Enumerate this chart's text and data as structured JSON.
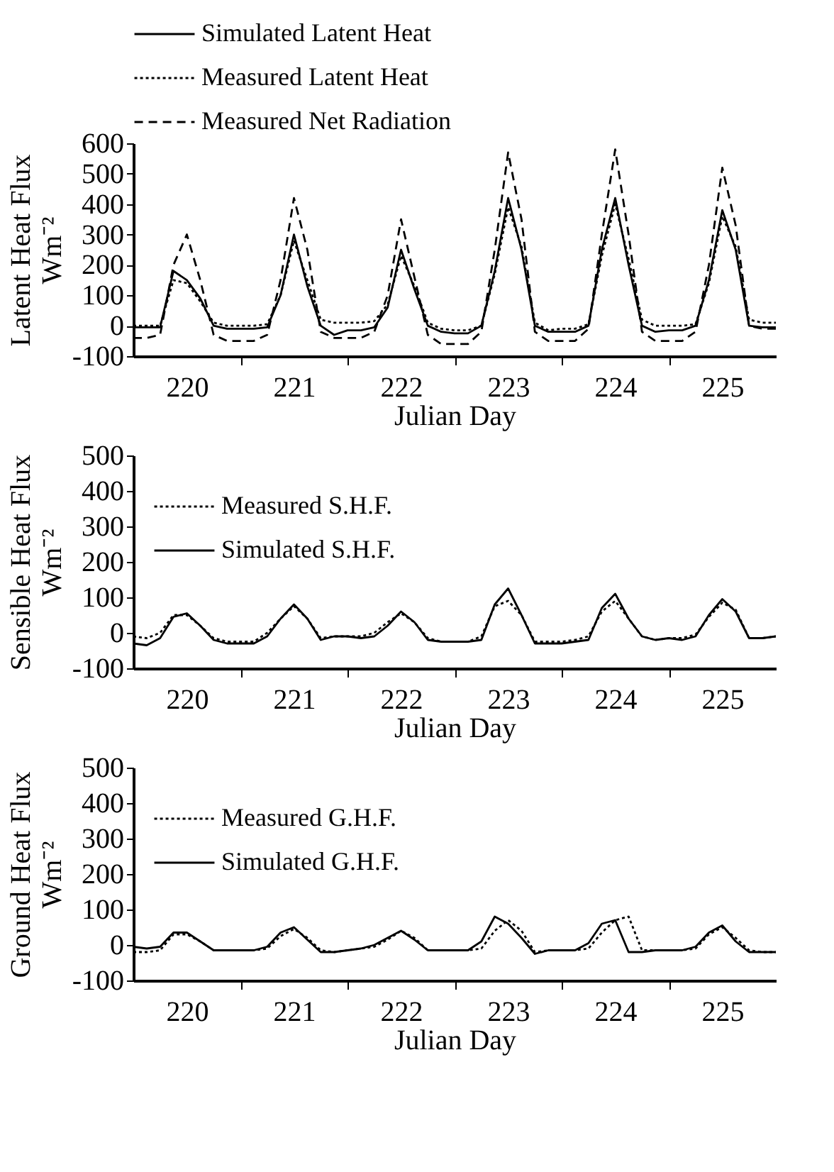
{
  "chart_data": [
    {
      "type": "line",
      "xlabel": "Julian Day",
      "ylabel": "Latent Heat Flux\nWm⁻²",
      "xlim": [
        220,
        226
      ],
      "ylim": [
        -100,
        600
      ],
      "yticks": [
        -100,
        0,
        100,
        200,
        300,
        400,
        500,
        600
      ],
      "xticks": [
        {
          "value": 220.5,
          "label": "220"
        },
        {
          "value": 221,
          "label": null
        },
        {
          "value": 221.5,
          "label": "221"
        },
        {
          "value": 222,
          "label": null
        },
        {
          "value": 222.5,
          "label": "222"
        },
        {
          "value": 223,
          "label": null
        },
        {
          "value": 223.5,
          "label": "223"
        },
        {
          "value": 224,
          "label": null
        },
        {
          "value": 224.5,
          "label": "224"
        },
        {
          "value": 225,
          "label": null
        },
        {
          "value": 225.5,
          "label": "225"
        }
      ],
      "grid": false,
      "legend": "top",
      "x": [
        220,
        220.125,
        220.25,
        220.375,
        220.5,
        220.625,
        220.75,
        220.875,
        221,
        221.125,
        221.25,
        221.375,
        221.5,
        221.625,
        221.75,
        221.875,
        222,
        222.125,
        222.25,
        222.375,
        222.5,
        222.625,
        222.75,
        222.875,
        223,
        223.125,
        223.25,
        223.375,
        223.5,
        223.625,
        223.75,
        223.875,
        224,
        224.125,
        224.25,
        224.375,
        224.5,
        224.625,
        224.75,
        224.875,
        225,
        225.125,
        225.25,
        225.375,
        225.5,
        225.625,
        225.75,
        225.875,
        226
      ],
      "series": [
        {
          "name": "Simulated Latent Heat",
          "color": "#000000",
          "line_style": "solid",
          "values": [
            -5,
            -5,
            -5,
            180,
            150,
            90,
            0,
            -10,
            -10,
            -10,
            -5,
            100,
            300,
            130,
            0,
            -30,
            -15,
            -15,
            -5,
            60,
            250,
            120,
            0,
            -20,
            -25,
            -25,
            0,
            180,
            420,
            250,
            0,
            -20,
            -20,
            -20,
            0,
            250,
            420,
            200,
            0,
            -20,
            -15,
            -15,
            0,
            150,
            380,
            250,
            0,
            -5,
            -5
          ]
        },
        {
          "name": "Measured Latent Heat",
          "color": "#000000",
          "line_style": "dotted",
          "values": [
            0,
            0,
            0,
            150,
            140,
            80,
            10,
            0,
            0,
            0,
            5,
            100,
            280,
            150,
            20,
            10,
            10,
            10,
            15,
            70,
            230,
            130,
            10,
            -10,
            -15,
            -15,
            0,
            170,
            390,
            260,
            10,
            -15,
            -10,
            -10,
            5,
            230,
            400,
            220,
            20,
            0,
            0,
            0,
            5,
            140,
            360,
            260,
            20,
            10,
            10
          ]
        },
        {
          "name": "Measured Net Radiation",
          "color": "#000000",
          "line_style": "dashed",
          "values": [
            -40,
            -40,
            -30,
            200,
            300,
            150,
            -30,
            -50,
            -50,
            -50,
            -30,
            150,
            420,
            250,
            -20,
            -40,
            -40,
            -40,
            -20,
            100,
            350,
            160,
            -30,
            -60,
            -60,
            -60,
            -20,
            250,
            570,
            350,
            -20,
            -50,
            -50,
            -50,
            -10,
            300,
            580,
            300,
            -20,
            -50,
            -50,
            -50,
            -20,
            200,
            520,
            330,
            0,
            -10,
            -10
          ]
        }
      ]
    },
    {
      "type": "line",
      "xlabel": "Julian Day",
      "ylabel": "Sensible Heat Flux\nWm⁻²",
      "xlim": [
        220,
        226
      ],
      "ylim": [
        -100,
        500
      ],
      "yticks": [
        -100,
        0,
        100,
        200,
        300,
        400,
        500
      ],
      "xticks": [
        {
          "value": 220.5,
          "label": "220"
        },
        {
          "value": 221,
          "label": null
        },
        {
          "value": 221.5,
          "label": "221"
        },
        {
          "value": 222,
          "label": null
        },
        {
          "value": 222.5,
          "label": "222"
        },
        {
          "value": 223,
          "label": null
        },
        {
          "value": 223.5,
          "label": "223"
        },
        {
          "value": 224,
          "label": null
        },
        {
          "value": 224.5,
          "label": "224"
        },
        {
          "value": 225,
          "label": null
        },
        {
          "value": 225.5,
          "label": "225"
        }
      ],
      "grid": false,
      "legend": "top left",
      "x": [
        220,
        220.125,
        220.25,
        220.375,
        220.5,
        220.625,
        220.75,
        220.875,
        221,
        221.125,
        221.25,
        221.375,
        221.5,
        221.625,
        221.75,
        221.875,
        222,
        222.125,
        222.25,
        222.375,
        222.5,
        222.625,
        222.75,
        222.875,
        223,
        223.125,
        223.25,
        223.375,
        223.5,
        223.625,
        223.75,
        223.875,
        224,
        224.125,
        224.25,
        224.375,
        224.5,
        224.625,
        224.75,
        224.875,
        225,
        225.125,
        225.25,
        225.375,
        225.5,
        225.625,
        225.75,
        225.875,
        226
      ],
      "series": [
        {
          "name": "Measured S.H.F.",
          "color": "#000000",
          "line_style": "dotted",
          "values": [
            -10,
            -15,
            0,
            50,
            50,
            20,
            -15,
            -25,
            -25,
            -25,
            0,
            40,
            75,
            40,
            -15,
            -10,
            -10,
            -10,
            0,
            30,
            55,
            30,
            -15,
            -25,
            -25,
            -25,
            -10,
            75,
            90,
            50,
            -25,
            -25,
            -25,
            -20,
            -10,
            60,
            90,
            40,
            -10,
            -20,
            -15,
            -15,
            -5,
            45,
            85,
            65,
            -15,
            -15,
            -10
          ]
        },
        {
          "name": "Simulated S.H.F.",
          "color": "#000000",
          "line_style": "solid",
          "values": [
            -30,
            -35,
            -15,
            45,
            55,
            20,
            -20,
            -30,
            -30,
            -30,
            -10,
            40,
            80,
            40,
            -20,
            -10,
            -10,
            -15,
            -10,
            20,
            60,
            30,
            -20,
            -25,
            -25,
            -25,
            -20,
            80,
            125,
            50,
            -30,
            -30,
            -30,
            -25,
            -20,
            70,
            110,
            40,
            -10,
            -20,
            -15,
            -20,
            -10,
            50,
            95,
            60,
            -15,
            -15,
            -10
          ]
        }
      ]
    },
    {
      "type": "line",
      "xlabel": "Julian Day",
      "ylabel": "Ground Heat Flux\nWm⁻²",
      "xlim": [
        220,
        226
      ],
      "ylim": [
        -100,
        500
      ],
      "yticks": [
        -100,
        0,
        100,
        200,
        300,
        400,
        500
      ],
      "xticks": [
        {
          "value": 220.5,
          "label": "220"
        },
        {
          "value": 221,
          "label": null
        },
        {
          "value": 221.5,
          "label": "221"
        },
        {
          "value": 222,
          "label": null
        },
        {
          "value": 222.5,
          "label": "222"
        },
        {
          "value": 223,
          "label": null
        },
        {
          "value": 223.5,
          "label": "223"
        },
        {
          "value": 224,
          "label": null
        },
        {
          "value": 224.5,
          "label": "224"
        },
        {
          "value": 225,
          "label": null
        },
        {
          "value": 225.5,
          "label": "225"
        }
      ],
      "grid": false,
      "legend": "top left",
      "x": [
        220,
        220.125,
        220.25,
        220.375,
        220.5,
        220.625,
        220.75,
        220.875,
        221,
        221.125,
        221.25,
        221.375,
        221.5,
        221.625,
        221.75,
        221.875,
        222,
        222.125,
        222.25,
        222.375,
        222.5,
        222.625,
        222.75,
        222.875,
        223,
        223.125,
        223.25,
        223.375,
        223.5,
        223.625,
        223.75,
        223.875,
        224,
        224.125,
        224.25,
        224.375,
        224.5,
        224.625,
        224.75,
        224.875,
        225,
        225.125,
        225.25,
        225.375,
        225.5,
        225.625,
        225.75,
        225.875,
        226
      ],
      "series": [
        {
          "name": "Measured G.H.F.",
          "color": "#000000",
          "line_style": "dotted",
          "values": [
            -20,
            -20,
            -15,
            30,
            30,
            10,
            -15,
            -15,
            -15,
            -15,
            -10,
            25,
            45,
            20,
            -15,
            -20,
            -15,
            -10,
            -5,
            15,
            40,
            20,
            -15,
            -15,
            -15,
            -15,
            -10,
            40,
            70,
            40,
            -20,
            -15,
            -15,
            -15,
            -10,
            35,
            70,
            80,
            -15,
            -15,
            -15,
            -15,
            -10,
            30,
            50,
            20,
            -15,
            -20,
            -20
          ]
        },
        {
          "name": "Simulated G.H.F.",
          "color": "#000000",
          "line_style": "solid",
          "values": [
            -5,
            -10,
            -5,
            35,
            35,
            10,
            -15,
            -15,
            -15,
            -15,
            -5,
            35,
            50,
            15,
            -20,
            -20,
            -15,
            -10,
            0,
            20,
            40,
            15,
            -15,
            -15,
            -15,
            -15,
            10,
            80,
            60,
            20,
            -25,
            -15,
            -15,
            -15,
            5,
            60,
            70,
            -20,
            -20,
            -15,
            -15,
            -15,
            -5,
            35,
            55,
            10,
            -20,
            -20,
            -20
          ]
        }
      ]
    }
  ]
}
